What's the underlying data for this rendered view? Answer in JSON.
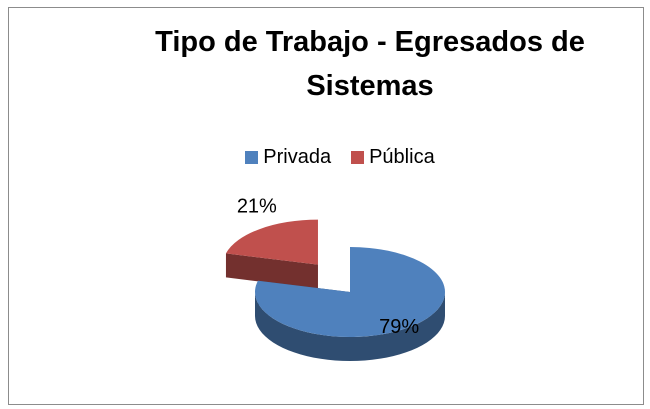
{
  "chart_data": {
    "type": "pie3d",
    "title": "Tipo de Trabajo - Egresados de Sistemas",
    "categories": [
      "Privada",
      "Pública"
    ],
    "values": [
      79,
      21
    ],
    "value_labels": [
      "79%",
      "21%"
    ],
    "colors": [
      "#4f81bd",
      "#c0504d"
    ],
    "legend": "top",
    "exploded": [
      false,
      true
    ]
  }
}
